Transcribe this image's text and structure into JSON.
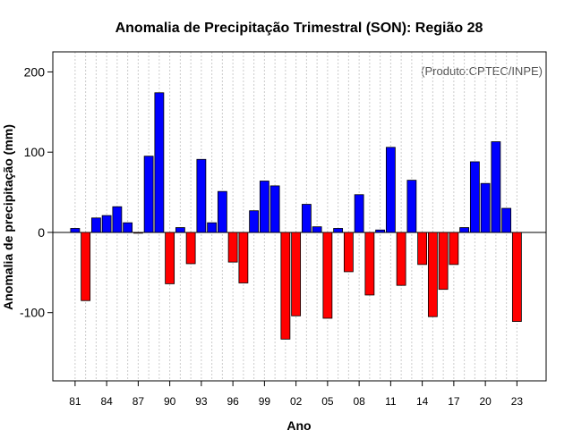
{
  "chart_data": {
    "type": "bar",
    "title": "Anomalia de Precipitação Trimestral (SON): Região 28",
    "xlabel": "Ano",
    "ylabel": "Anomalia de precipitação (mm)",
    "credit": "(Produto:CPTEC/INPE)",
    "ylim": [
      -185,
      225
    ],
    "yticks": [
      -100,
      0,
      100,
      200
    ],
    "categories": [
      "81",
      "82",
      "83",
      "84",
      "85",
      "86",
      "87",
      "88",
      "89",
      "90",
      "91",
      "92",
      "93",
      "94",
      "95",
      "96",
      "97",
      "98",
      "99",
      "00",
      "01",
      "02",
      "03",
      "04",
      "05",
      "06",
      "07",
      "08",
      "09",
      "10",
      "11",
      "12",
      "13",
      "14",
      "15",
      "16",
      "17",
      "18",
      "19",
      "20",
      "21",
      "22",
      "23"
    ],
    "xtick_labels": [
      "81",
      "84",
      "87",
      "90",
      "93",
      "96",
      "99",
      "02",
      "05",
      "08",
      "11",
      "14",
      "17",
      "20",
      "23"
    ],
    "values": [
      5,
      -85,
      18,
      21,
      32,
      12,
      -1,
      95,
      174,
      -64,
      6,
      -39,
      91,
      12,
      51,
      -37,
      -63,
      27,
      64,
      58,
      -133,
      -104,
      35,
      7,
      -107,
      5,
      -49,
      47,
      -78,
      3,
      106,
      -66,
      65,
      -40,
      -105,
      -71,
      -40,
      6,
      88,
      61,
      113,
      30,
      -111
    ],
    "colors": {
      "positive": "#0000ff",
      "negative": "#ff0000",
      "grid": "#cccccc",
      "zero_line": "#000000"
    }
  }
}
